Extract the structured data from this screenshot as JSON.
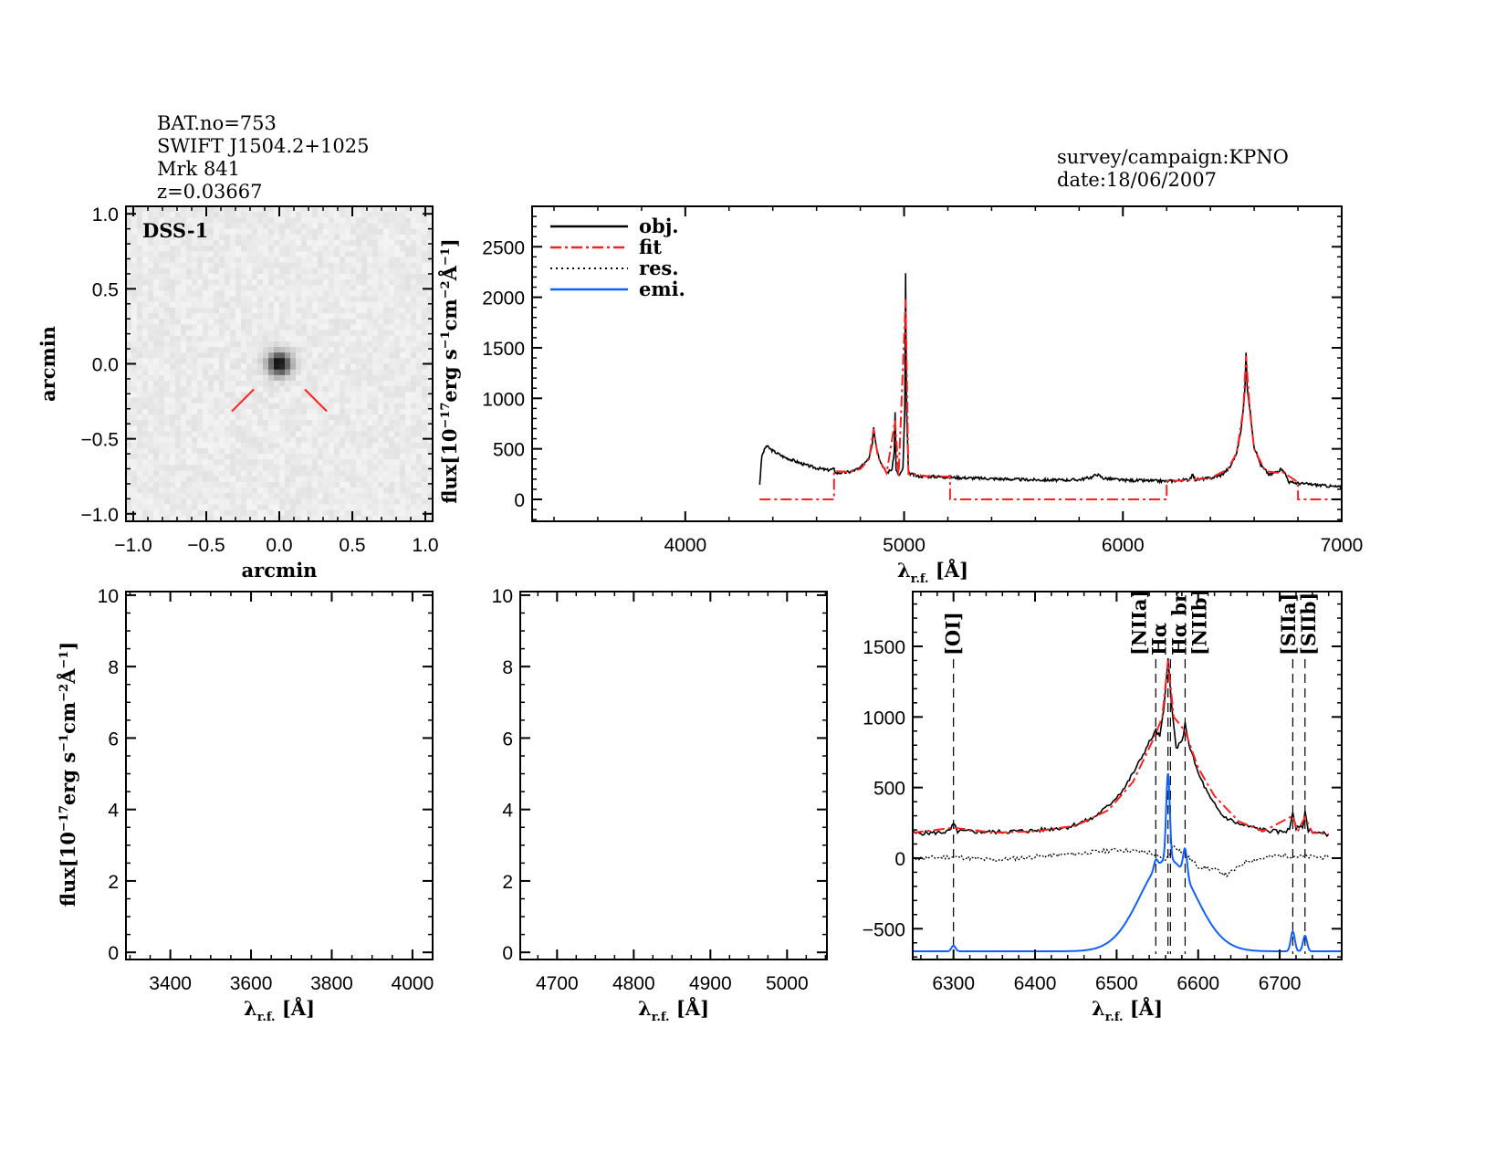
{
  "header": {
    "left": [
      "BAT.no=753",
      "SWIFT J1504.2+1025",
      "Mrk 841",
      "z=0.03667"
    ],
    "right": [
      "survey/campaign:KPNO",
      "date:18/06/2007"
    ]
  },
  "colors": {
    "obj": "#000000",
    "fit": "#ff2020",
    "res": "#000000",
    "emi": "#1060ff",
    "marker": "#ff2020"
  },
  "chart_data": [
    {
      "type": "image",
      "title": "DSS-1",
      "xlabel": "arcmin",
      "ylabel": "arcmin",
      "xlim": [
        -1.05,
        1.05
      ],
      "ylim": [
        -1.05,
        1.05
      ],
      "xticks": [
        "−1.0",
        "−0.5",
        "0.0",
        "0.5",
        "1.0"
      ],
      "xtick_values": [
        -1,
        -0.5,
        0,
        0.5,
        1
      ],
      "yticks": [
        "−1.0",
        "−0.5",
        "0.0",
        "0.5",
        "1.0"
      ],
      "ytick_values": [
        -1,
        -0.5,
        0,
        0.5,
        1
      ],
      "source_position": [
        0,
        0
      ]
    },
    {
      "type": "line",
      "xlabel": "λ r.f. [Å]",
      "ylabel": "flux[10⁻¹⁷erg s⁻¹cm⁻²Å⁻¹]",
      "xlim": [
        3300,
        7000
      ],
      "ylim": [
        -217,
        2900
      ],
      "xtick_values": [
        4000,
        5000,
        6000,
        7000
      ],
      "ytick_values": [
        0,
        500,
        1000,
        1500,
        2000,
        2500
      ],
      "legend": {
        "placement": "top-left",
        "entries": [
          "obj.",
          "fit",
          "res.",
          "emi."
        ]
      },
      "series": [
        {
          "name": "obj.",
          "points": [
            [
              4340,
              150
            ],
            [
              4350,
              430
            ],
            [
              4370,
              530
            ],
            [
              4400,
              480
            ],
            [
              4450,
              420
            ],
            [
              4500,
              380
            ],
            [
              4550,
              340
            ],
            [
              4600,
              310
            ],
            [
              4650,
              290
            ],
            [
              4680,
              300
            ],
            [
              4690,
              260
            ],
            [
              4750,
              270
            ],
            [
              4800,
              310
            ],
            [
              4840,
              420
            ],
            [
              4855,
              560
            ],
            [
              4861,
              720
            ],
            [
              4870,
              560
            ],
            [
              4890,
              380
            ],
            [
              4920,
              260
            ],
            [
              4945,
              300
            ],
            [
              4955,
              480
            ],
            [
              4959,
              860
            ],
            [
              4963,
              300
            ],
            [
              4975,
              230
            ],
            [
              4995,
              300
            ],
            [
              5003,
              900
            ],
            [
              5007,
              2230
            ],
            [
              5011,
              900
            ],
            [
              5020,
              260
            ],
            [
              5060,
              230
            ],
            [
              5150,
              225
            ],
            [
              5250,
              215
            ],
            [
              5400,
              205
            ],
            [
              5550,
              195
            ],
            [
              5700,
              190
            ],
            [
              5800,
              195
            ],
            [
              5860,
              220
            ],
            [
              5880,
              250
            ],
            [
              5910,
              210
            ],
            [
              6000,
              190
            ],
            [
              6100,
              185
            ],
            [
              6200,
              180
            ],
            [
              6300,
              195
            ],
            [
              6320,
              240
            ],
            [
              6330,
              195
            ],
            [
              6400,
              210
            ],
            [
              6450,
              240
            ],
            [
              6490,
              320
            ],
            [
              6520,
              460
            ],
            [
              6540,
              680
            ],
            [
              6550,
              900
            ],
            [
              6558,
              1100
            ],
            [
              6563,
              1460
            ],
            [
              6568,
              1100
            ],
            [
              6580,
              900
            ],
            [
              6600,
              520
            ],
            [
              6630,
              340
            ],
            [
              6670,
              240
            ],
            [
              6716,
              290
            ],
            [
              6731,
              300
            ],
            [
              6760,
              170
            ],
            [
              6800,
              160
            ],
            [
              6900,
              140
            ],
            [
              7000,
              120
            ]
          ]
        },
        {
          "name": "fit",
          "points": [
            [
              4340,
              0
            ],
            [
              4680,
              0
            ],
            [
              4680,
              280
            ],
            [
              4750,
              270
            ],
            [
              4800,
              300
            ],
            [
              4840,
              400
            ],
            [
              4861,
              700
            ],
            [
              4880,
              420
            ],
            [
              4920,
              260
            ],
            [
              4959,
              780
            ],
            [
              4975,
              230
            ],
            [
              5007,
              1980
            ],
            [
              5020,
              250
            ],
            [
              5100,
              230
            ],
            [
              5210,
              225
            ],
            [
              5210,
              0
            ],
            [
              6200,
              0
            ],
            [
              6200,
              180
            ],
            [
              6300,
              190
            ],
            [
              6400,
              210
            ],
            [
              6480,
              300
            ],
            [
              6520,
              460
            ],
            [
              6550,
              880
            ],
            [
              6563,
              1420
            ],
            [
              6580,
              880
            ],
            [
              6600,
              500
            ],
            [
              6650,
              280
            ],
            [
              6716,
              260
            ],
            [
              6731,
              270
            ],
            [
              6800,
              170
            ],
            [
              6800,
              0
            ],
            [
              7000,
              0
            ]
          ]
        }
      ]
    },
    {
      "type": "line",
      "empty": true,
      "xlabel": "λ r.f. [Å]",
      "ylabel": "flux[10⁻¹⁷erg s⁻¹cm⁻²Å⁻¹]",
      "xlim": [
        3290,
        4050
      ],
      "ylim": [
        -0.2,
        10.1
      ],
      "xtick_values": [
        3400,
        3600,
        3800,
        4000
      ],
      "ytick_values": [
        0,
        2,
        4,
        6,
        8,
        10
      ]
    },
    {
      "type": "line",
      "empty": true,
      "xlabel": "λ r.f. [Å]",
      "xlim": [
        4652,
        5052
      ],
      "ylim": [
        -0.2,
        10.1
      ],
      "xtick_values": [
        4700,
        4800,
        4900,
        5000
      ],
      "ytick_values": [
        0,
        2,
        4,
        6,
        8,
        10
      ]
    },
    {
      "type": "line",
      "xlabel": "λ r.f. [Å]",
      "xlim": [
        6250,
        6776
      ],
      "ylim": [
        -718,
        1888
      ],
      "xtick_values": [
        6300,
        6400,
        6500,
        6600,
        6700
      ],
      "ytick_values": [
        -500,
        0,
        500,
        1000,
        1500
      ],
      "line_markers": [
        {
          "label": "[OI]",
          "wavelength": 6300
        },
        {
          "label": "[NIIa]",
          "wavelength": 6548
        },
        {
          "label": "Hα",
          "wavelength": 6563
        },
        {
          "label": "Hα br",
          "wavelength": 6566
        },
        {
          "label": "[NIIb]",
          "wavelength": 6584
        },
        {
          "label": "[SIIa]",
          "wavelength": 6716
        },
        {
          "label": "[SIIb]",
          "wavelength": 6731
        }
      ],
      "series": [
        {
          "name": "obj.",
          "points": [
            [
              6250,
              175
            ],
            [
              6280,
              180
            ],
            [
              6295,
              190
            ],
            [
              6300,
              240
            ],
            [
              6305,
              190
            ],
            [
              6350,
              185
            ],
            [
              6400,
              195
            ],
            [
              6440,
              220
            ],
            [
              6470,
              280
            ],
            [
              6490,
              370
            ],
            [
              6510,
              500
            ],
            [
              6525,
              650
            ],
            [
              6540,
              820
            ],
            [
              6548,
              900
            ],
            [
              6553,
              860
            ],
            [
              6558,
              1050
            ],
            [
              6563,
              1430
            ],
            [
              6567,
              1100
            ],
            [
              6573,
              780
            ],
            [
              6580,
              820
            ],
            [
              6584,
              950
            ],
            [
              6590,
              780
            ],
            [
              6600,
              600
            ],
            [
              6615,
              420
            ],
            [
              6630,
              300
            ],
            [
              6650,
              240
            ],
            [
              6680,
              200
            ],
            [
              6700,
              185
            ],
            [
              6712,
              200
            ],
            [
              6716,
              330
            ],
            [
              6720,
              210
            ],
            [
              6728,
              220
            ],
            [
              6731,
              320
            ],
            [
              6735,
              200
            ],
            [
              6750,
              175
            ],
            [
              6760,
              170
            ]
          ]
        },
        {
          "name": "fit",
          "points": [
            [
              6250,
              180
            ],
            [
              6300,
              215
            ],
            [
              6350,
              180
            ],
            [
              6400,
              190
            ],
            [
              6450,
              230
            ],
            [
              6490,
              340
            ],
            [
              6520,
              540
            ],
            [
              6540,
              780
            ],
            [
              6548,
              880
            ],
            [
              6556,
              1000
            ],
            [
              6563,
              1400
            ],
            [
              6570,
              1000
            ],
            [
              6584,
              900
            ],
            [
              6600,
              640
            ],
            [
              6620,
              440
            ],
            [
              6650,
              260
            ],
            [
              6680,
              190
            ],
            [
              6716,
              300
            ],
            [
              6722,
              190
            ],
            [
              6731,
              290
            ],
            [
              6740,
              180
            ],
            [
              6760,
              170
            ]
          ]
        },
        {
          "name": "res.",
          "points": [
            [
              6250,
              -5
            ],
            [
              6300,
              10
            ],
            [
              6350,
              -15
            ],
            [
              6400,
              10
            ],
            [
              6450,
              30
            ],
            [
              6500,
              60
            ],
            [
              6540,
              40
            ],
            [
              6560,
              -20
            ],
            [
              6570,
              90
            ],
            [
              6585,
              20
            ],
            [
              6600,
              -60
            ],
            [
              6620,
              -80
            ],
            [
              6635,
              -120
            ],
            [
              6660,
              -20
            ],
            [
              6700,
              20
            ],
            [
              6730,
              10
            ],
            [
              6760,
              5
            ]
          ]
        },
        {
          "name": "emi.",
          "baseline": -660,
          "lines": [
            {
              "center": 6563,
              "amplitude": 650,
              "sigma": 34
            },
            {
              "center": 6563,
              "amplitude": 610,
              "sigma": 2.2
            },
            {
              "center": 6548,
              "amplitude": 60,
              "sigma": 2.2
            },
            {
              "center": 6584,
              "amplitude": 190,
              "sigma": 2.5
            },
            {
              "center": 6300,
              "amplitude": 40,
              "sigma": 2.5
            },
            {
              "center": 6716,
              "amplitude": 140,
              "sigma": 2.5
            },
            {
              "center": 6731,
              "amplitude": 110,
              "sigma": 2.5
            }
          ]
        }
      ]
    }
  ]
}
